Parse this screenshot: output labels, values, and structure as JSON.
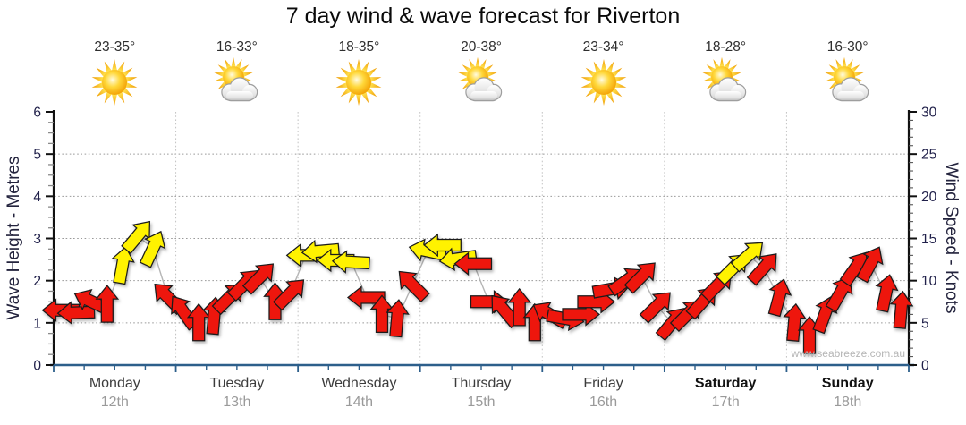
{
  "title": "7 day wind & wave forecast for Riverton",
  "watermark": "www.seabreeze.com.au",
  "chart_data": {
    "type": "wind-arrow-forecast",
    "title": "7 day wind & wave forecast for Riverton",
    "left_axis": {
      "label": "Wave Height - Metres",
      "min": 0,
      "max": 6,
      "major_ticks": [
        0,
        1,
        2,
        3,
        4,
        5,
        6
      ],
      "minor_step": 0.25,
      "gridlines": [
        1,
        2,
        3,
        4,
        5
      ]
    },
    "right_axis": {
      "label": "Wind Speed - Knots",
      "min": 0,
      "max": 30,
      "major_ticks": [
        0,
        5,
        10,
        15,
        20,
        25,
        30
      ],
      "minor_step": 1,
      "gridlines": [
        5,
        10,
        15,
        20,
        25
      ]
    },
    "arrows_per_day": 8,
    "days": [
      {
        "name": "Monday",
        "date": "12th",
        "temp": "23-35°",
        "icon": "sunny",
        "weekend": false,
        "wind": [
          {
            "kt": 6.5,
            "dir": 270,
            "c": "red"
          },
          {
            "kt": 6.2,
            "dir": 268,
            "c": "red"
          },
          {
            "kt": 7.5,
            "dir": 295,
            "c": "red"
          },
          {
            "kt": 7.2,
            "dir": 0,
            "c": "red"
          },
          {
            "kt": 11.8,
            "dir": 10,
            "c": "yellow"
          },
          {
            "kt": 15.3,
            "dir": 40,
            "c": "yellow"
          },
          {
            "kt": 13.8,
            "dir": 25,
            "c": "yellow"
          },
          {
            "kt": 8.0,
            "dir": 315,
            "c": "red"
          }
        ]
      },
      {
        "name": "Tuesday",
        "date": "13th",
        "temp": "16-33°",
        "icon": "partly-cloudy",
        "weekend": false,
        "wind": [
          {
            "kt": 6.3,
            "dir": 325,
            "c": "red"
          },
          {
            "kt": 5.0,
            "dir": 0,
            "c": "red"
          },
          {
            "kt": 5.8,
            "dir": 5,
            "c": "red"
          },
          {
            "kt": 8.0,
            "dir": 45,
            "c": "red"
          },
          {
            "kt": 9.6,
            "dir": 45,
            "c": "red"
          },
          {
            "kt": 10.4,
            "dir": 45,
            "c": "red"
          },
          {
            "kt": 7.5,
            "dir": 0,
            "c": "red"
          },
          {
            "kt": 8.5,
            "dir": 45,
            "c": "red"
          }
        ]
      },
      {
        "name": "Wednesday",
        "date": "14th",
        "temp": "18-35°",
        "icon": "sunny",
        "weekend": false,
        "wind": [
          {
            "kt": 13.0,
            "dir": 270,
            "c": "yellow"
          },
          {
            "kt": 13.5,
            "dir": 265,
            "c": "yellow"
          },
          {
            "kt": 12.4,
            "dir": 270,
            "c": "yellow"
          },
          {
            "kt": 12.2,
            "dir": 273,
            "c": "yellow"
          },
          {
            "kt": 8.0,
            "dir": 270,
            "c": "red"
          },
          {
            "kt": 6.0,
            "dir": 0,
            "c": "red"
          },
          {
            "kt": 5.5,
            "dir": 5,
            "c": "red"
          },
          {
            "kt": 9.5,
            "dir": 315,
            "c": "red"
          }
        ]
      },
      {
        "name": "Thursday",
        "date": "15th",
        "temp": "20-38°",
        "icon": "partly-cloudy",
        "weekend": false,
        "wind": [
          {
            "kt": 13.5,
            "dir": 282,
            "c": "yellow"
          },
          {
            "kt": 14.2,
            "dir": 270,
            "c": "yellow"
          },
          {
            "kt": 12.6,
            "dir": 262,
            "c": "yellow"
          },
          {
            "kt": 12.0,
            "dir": 270,
            "c": "red"
          },
          {
            "kt": 7.5,
            "dir": 90,
            "c": "red"
          },
          {
            "kt": 6.5,
            "dir": 320,
            "c": "red"
          },
          {
            "kt": 6.8,
            "dir": 0,
            "c": "red"
          },
          {
            "kt": 5.0,
            "dir": 0,
            "c": "red"
          }
        ]
      },
      {
        "name": "Friday",
        "date": "16th",
        "temp": "23-34°",
        "icon": "sunny",
        "weekend": false,
        "wind": [
          {
            "kt": 6.0,
            "dir": 300,
            "c": "red"
          },
          {
            "kt": 5.5,
            "dir": 100,
            "c": "red"
          },
          {
            "kt": 6.0,
            "dir": 90,
            "c": "red"
          },
          {
            "kt": 7.5,
            "dir": 90,
            "c": "red"
          },
          {
            "kt": 9.0,
            "dir": 80,
            "c": "red"
          },
          {
            "kt": 10.0,
            "dir": 55,
            "c": "red"
          },
          {
            "kt": 10.5,
            "dir": 45,
            "c": "red"
          },
          {
            "kt": 7.0,
            "dir": 45,
            "c": "red"
          }
        ]
      },
      {
        "name": "Saturday",
        "date": "17th",
        "temp": "18-28°",
        "icon": "partly-cloudy",
        "weekend": true,
        "wind": [
          {
            "kt": 5.0,
            "dir": 40,
            "c": "red"
          },
          {
            "kt": 6.0,
            "dir": 45,
            "c": "red"
          },
          {
            "kt": 7.5,
            "dir": 42,
            "c": "red"
          },
          {
            "kt": 9.5,
            "dir": 45,
            "c": "red"
          },
          {
            "kt": 11.5,
            "dir": 45,
            "c": "yellow"
          },
          {
            "kt": 13.0,
            "dir": 48,
            "c": "yellow"
          },
          {
            "kt": 11.5,
            "dir": 42,
            "c": "red"
          },
          {
            "kt": 8.0,
            "dir": 15,
            "c": "red"
          }
        ]
      },
      {
        "name": "Sunday",
        "date": "18th",
        "temp": "16-30°",
        "icon": "partly-cloudy",
        "weekend": true,
        "wind": [
          {
            "kt": 5.0,
            "dir": 5,
            "c": "red"
          },
          {
            "kt": 3.5,
            "dir": 0,
            "c": "red"
          },
          {
            "kt": 6.0,
            "dir": 20,
            "c": "red"
          },
          {
            "kt": 8.5,
            "dir": 30,
            "c": "red"
          },
          {
            "kt": 11.5,
            "dir": 35,
            "c": "red"
          },
          {
            "kt": 12.0,
            "dir": 28,
            "c": "red"
          },
          {
            "kt": 8.5,
            "dir": 12,
            "c": "red"
          },
          {
            "kt": 6.5,
            "dir": 5,
            "c": "red"
          }
        ]
      }
    ],
    "colors": {
      "arrow_red": "#ee1309",
      "arrow_yellow": "#fff200",
      "arrow_outline": "#1a1a1a",
      "axis": "#111111",
      "x_axis": "#2d5f8b",
      "grid": "#9a9a9a",
      "day_divider": "#c2c2c2",
      "connector": "#b5b5b5",
      "tick_label": "#20204a",
      "day_label": "#3c3c3c",
      "weekend_label": "#111111",
      "date_label": "#9a9a9a",
      "temp_label": "#2e2e2e",
      "watermark": "#b5b5b5"
    }
  }
}
